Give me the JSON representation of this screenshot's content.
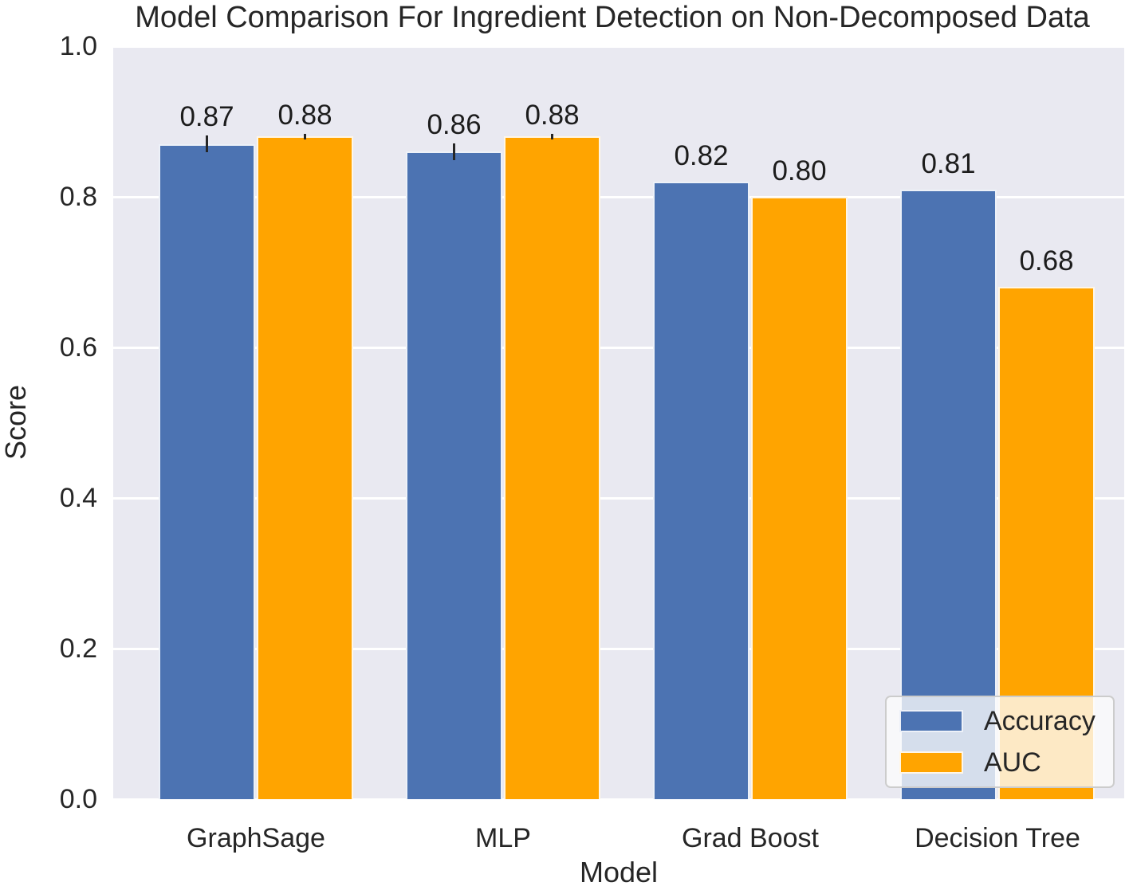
{
  "chart_data": {
    "type": "bar",
    "title": "Model Comparison For Ingredient Detection on Non-Decomposed Data",
    "xlabel": "Model",
    "ylabel": "Score",
    "categories": [
      "GraphSage",
      "MLP",
      "Grad Boost",
      "Decision Tree"
    ],
    "series": [
      {
        "name": "Accuracy",
        "color": "#4c73b2",
        "values": [
          0.87,
          0.86,
          0.82,
          0.81
        ],
        "errors": [
          0.011,
          0.011,
          0,
          0
        ]
      },
      {
        "name": "AUC",
        "color": "#ffa400",
        "values": [
          0.88,
          0.88,
          0.8,
          0.68
        ],
        "errors": [
          0.004,
          0.004,
          0,
          0
        ]
      }
    ],
    "bar_labels": [
      [
        "0.87",
        "0.86",
        "0.82",
        "0.81"
      ],
      [
        "0.88",
        "0.88",
        "0.80",
        "0.68"
      ]
    ],
    "ylim": [
      0.0,
      1.0
    ],
    "yticks": [
      "0.0",
      "0.2",
      "0.4",
      "0.6",
      "0.8",
      "1.0"
    ],
    "grid": true,
    "legend": {
      "position": "lower right",
      "entries": [
        {
          "label": "Accuracy",
          "color": "#4c73b2"
        },
        {
          "label": "AUC",
          "color": "#ffa400"
        }
      ]
    },
    "style": {
      "plot_background": "#e9e9f1",
      "gridline_color": "#ffffff",
      "text_color": "#262626",
      "error_bar_color": "#262626"
    }
  }
}
